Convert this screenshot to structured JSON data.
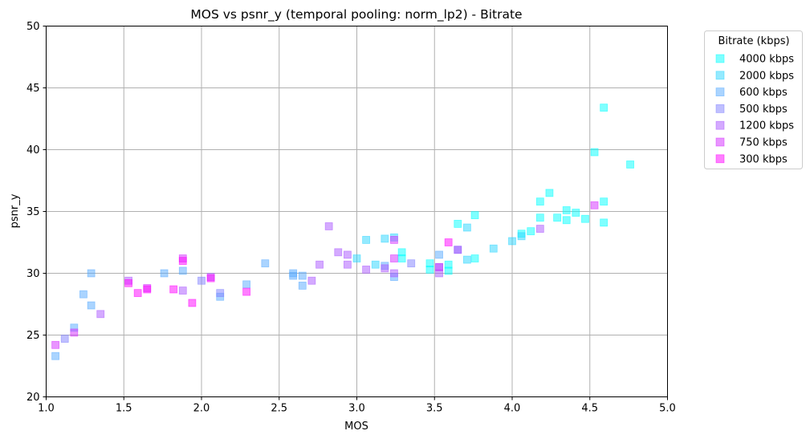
{
  "chart_data": {
    "type": "scatter",
    "title": "MOS vs psnr_y (temporal pooling: norm_lp2) - Bitrate",
    "xlabel": "MOS",
    "ylabel": "psnr_y",
    "xlim": [
      1.0,
      5.0
    ],
    "ylim": [
      20,
      50
    ],
    "xticks": [
      "1.0",
      "1.5",
      "2.0",
      "2.5",
      "3.0",
      "3.5",
      "4.0",
      "4.5",
      "5.0"
    ],
    "yticks": [
      "20",
      "25",
      "30",
      "35",
      "40",
      "45",
      "50"
    ],
    "grid": true,
    "legend_title": "Bitrate (kbps)",
    "legend_position": "outside-top-right",
    "marker": "square",
    "series": [
      {
        "name": "4000 kbps",
        "color": "#00ffff",
        "points": [
          [
            4.59,
            43.4
          ],
          [
            4.53,
            39.8
          ],
          [
            4.76,
            38.8
          ],
          [
            4.24,
            36.5
          ],
          [
            4.18,
            35.8
          ],
          [
            4.59,
            35.8
          ],
          [
            4.35,
            35.1
          ],
          [
            4.41,
            34.9
          ],
          [
            4.29,
            34.5
          ],
          [
            4.18,
            34.5
          ],
          [
            4.47,
            34.4
          ],
          [
            4.35,
            34.3
          ],
          [
            4.59,
            34.1
          ],
          [
            3.76,
            34.7
          ],
          [
            3.65,
            34.0
          ],
          [
            4.12,
            33.4
          ],
          [
            4.06,
            33.2
          ],
          [
            3.29,
            31.7
          ],
          [
            3.29,
            31.2
          ],
          [
            3.76,
            31.2
          ],
          [
            3.47,
            30.8
          ],
          [
            3.59,
            30.7
          ],
          [
            3.47,
            30.3
          ],
          [
            3.59,
            30.2
          ]
        ]
      },
      {
        "name": "2000 kbps",
        "color": "#2ad5ff",
        "points": [
          [
            3.71,
            33.7
          ],
          [
            4.06,
            33.0
          ],
          [
            4.0,
            32.6
          ],
          [
            3.24,
            32.9
          ],
          [
            3.18,
            32.8
          ],
          [
            3.06,
            32.7
          ],
          [
            3.88,
            32.0
          ],
          [
            3.71,
            31.1
          ],
          [
            3.0,
            31.2
          ],
          [
            3.12,
            30.7
          ]
        ]
      },
      {
        "name": "600 kbps",
        "color": "#55aaff",
        "points": [
          [
            1.29,
            30.0
          ],
          [
            1.24,
            28.3
          ],
          [
            1.29,
            27.4
          ],
          [
            1.18,
            25.6
          ],
          [
            1.06,
            23.3
          ],
          [
            1.76,
            30.0
          ],
          [
            2.41,
            30.8
          ],
          [
            2.59,
            30.0
          ],
          [
            2.59,
            29.8
          ],
          [
            2.65,
            29.8
          ],
          [
            2.29,
            29.1
          ],
          [
            2.65,
            29.0
          ],
          [
            2.12,
            28.1
          ],
          [
            3.53,
            31.5
          ],
          [
            3.18,
            30.6
          ],
          [
            3.24,
            29.7
          ],
          [
            1.88,
            30.2
          ]
        ]
      },
      {
        "name": "500 kbps",
        "color": "#8080ff",
        "points": [
          [
            2.0,
            29.4
          ],
          [
            2.12,
            28.4
          ],
          [
            1.12,
            24.7
          ],
          [
            3.65,
            31.9
          ],
          [
            3.35,
            30.8
          ],
          [
            3.53,
            30.5
          ]
        ]
      },
      {
        "name": "1200 kbps",
        "color": "#aa55ff",
        "points": [
          [
            2.82,
            33.8
          ],
          [
            2.88,
            31.7
          ],
          [
            2.94,
            31.5
          ],
          [
            2.94,
            30.7
          ],
          [
            2.76,
            30.7
          ],
          [
            2.71,
            29.4
          ],
          [
            3.06,
            30.3
          ],
          [
            3.18,
            30.4
          ],
          [
            3.24,
            30.0
          ],
          [
            3.53,
            30.0
          ],
          [
            3.65,
            31.9
          ],
          [
            4.18,
            33.6
          ],
          [
            1.35,
            26.7
          ],
          [
            1.53,
            29.4
          ],
          [
            1.88,
            28.6
          ],
          [
            2.06,
            29.7
          ]
        ]
      },
      {
        "name": "750 kbps",
        "color": "#d42bff",
        "points": [
          [
            3.24,
            32.7
          ],
          [
            3.24,
            31.2
          ],
          [
            3.53,
            30.5
          ],
          [
            4.53,
            35.5
          ],
          [
            1.88,
            31.2
          ],
          [
            1.65,
            28.8
          ],
          [
            1.06,
            24.2
          ],
          [
            1.18,
            25.2
          ]
        ]
      },
      {
        "name": "300 kbps",
        "color": "#ff00ff",
        "points": [
          [
            3.59,
            32.5
          ],
          [
            1.88,
            31.0
          ],
          [
            1.53,
            29.2
          ],
          [
            1.65,
            28.7
          ],
          [
            1.59,
            28.4
          ],
          [
            1.82,
            28.7
          ],
          [
            2.29,
            28.5
          ],
          [
            1.94,
            27.6
          ],
          [
            2.06,
            29.6
          ]
        ]
      }
    ]
  }
}
